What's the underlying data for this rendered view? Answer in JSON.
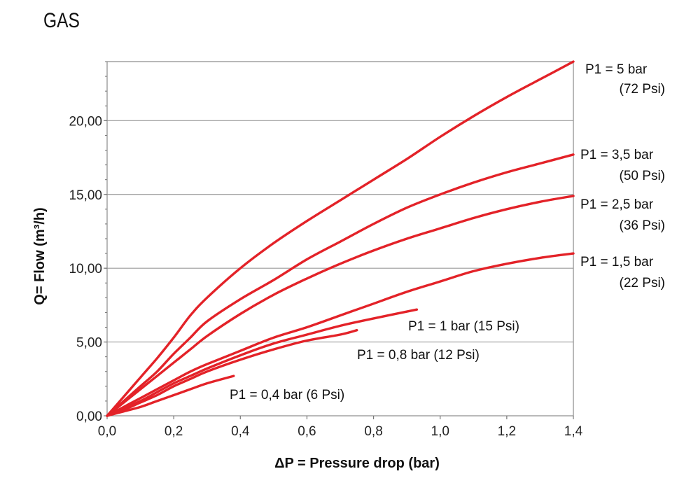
{
  "title": "GAS",
  "chart_data": {
    "type": "line",
    "title": "GAS",
    "xlabel": "ΔP = Pressure drop (bar)",
    "ylabel": "Q= Flow  (m³/h)",
    "xlim": [
      0,
      1.4
    ],
    "ylim": [
      0,
      24
    ],
    "xticks": [
      0,
      0.2,
      0.4,
      0.6,
      0.8,
      1.0,
      1.2,
      1.4
    ],
    "xtick_labels": [
      "0,0",
      "0,2",
      "0,4",
      "0,6",
      "0,8",
      "1,0",
      "1,2",
      "1,4"
    ],
    "yticks": [
      0,
      5,
      10,
      15,
      20
    ],
    "ytick_labels": [
      "0,00",
      "5,00",
      "10,00",
      "15,00",
      "20,00"
    ],
    "grid": "horizontal",
    "line_color": "#e32228",
    "series": [
      {
        "label": [
          "P1 = 5 bar",
          "(72 Psi)"
        ],
        "x": [
          0,
          0.05,
          0.1,
          0.15,
          0.2,
          0.25,
          0.3,
          0.4,
          0.5,
          0.6,
          0.7,
          0.8,
          0.9,
          1.0,
          1.1,
          1.2,
          1.3,
          1.4
        ],
        "y": [
          0,
          1.3,
          2.6,
          3.9,
          5.3,
          6.8,
          8.0,
          10.0,
          11.7,
          13.2,
          14.6,
          16.0,
          17.4,
          18.9,
          20.3,
          21.6,
          22.8,
          24.0
        ]
      },
      {
        "label": [
          "P1 = 3,5 bar",
          "(50 Psi)"
        ],
        "x": [
          0,
          0.05,
          0.1,
          0.15,
          0.2,
          0.25,
          0.3,
          0.4,
          0.5,
          0.6,
          0.7,
          0.8,
          0.9,
          1.0,
          1.1,
          1.2,
          1.3,
          1.4
        ],
        "y": [
          0,
          1.0,
          2.0,
          3.0,
          4.2,
          5.3,
          6.4,
          7.9,
          9.2,
          10.6,
          11.8,
          13.0,
          14.1,
          15.0,
          15.8,
          16.5,
          17.1,
          17.7
        ]
      },
      {
        "label": [
          "P1 = 2,5 bar",
          "(36 Psi)"
        ],
        "x": [
          0,
          0.05,
          0.1,
          0.15,
          0.2,
          0.25,
          0.3,
          0.4,
          0.5,
          0.6,
          0.7,
          0.8,
          0.9,
          1.0,
          1.1,
          1.2,
          1.3,
          1.4
        ],
        "y": [
          0,
          0.9,
          1.8,
          2.7,
          3.6,
          4.5,
          5.4,
          6.9,
          8.2,
          9.3,
          10.3,
          11.2,
          12.0,
          12.7,
          13.4,
          14.0,
          14.5,
          14.9
        ]
      },
      {
        "label": [
          "P1 = 1,5 bar",
          "(22 Psi)"
        ],
        "x": [
          0,
          0.05,
          0.1,
          0.15,
          0.2,
          0.25,
          0.3,
          0.4,
          0.5,
          0.6,
          0.7,
          0.8,
          0.9,
          1.0,
          1.1,
          1.2,
          1.3,
          1.4
        ],
        "y": [
          0,
          0.6,
          1.2,
          1.8,
          2.4,
          3.0,
          3.5,
          4.4,
          5.3,
          6.0,
          6.8,
          7.6,
          8.4,
          9.1,
          9.8,
          10.3,
          10.7,
          11.0
        ]
      },
      {
        "label": [
          "P1 = 1 bar (15 Psi)"
        ],
        "x": [
          0,
          0.05,
          0.1,
          0.15,
          0.2,
          0.25,
          0.3,
          0.4,
          0.5,
          0.6,
          0.7,
          0.8,
          0.93
        ],
        "y": [
          0,
          0.5,
          1.0,
          1.6,
          2.2,
          2.7,
          3.2,
          4.1,
          4.9,
          5.5,
          6.1,
          6.6,
          7.2
        ]
      },
      {
        "label": [
          "P1 = 0,8 bar (12 Psi)"
        ],
        "x": [
          0,
          0.05,
          0.1,
          0.15,
          0.2,
          0.25,
          0.3,
          0.4,
          0.5,
          0.6,
          0.7,
          0.75
        ],
        "y": [
          0,
          0.4,
          0.9,
          1.4,
          2.0,
          2.5,
          3.0,
          3.8,
          4.5,
          5.1,
          5.5,
          5.8
        ]
      },
      {
        "label": [
          "P1 = 0,4 bar (6 Psi)"
        ],
        "x": [
          0,
          0.05,
          0.1,
          0.15,
          0.2,
          0.25,
          0.3,
          0.38
        ],
        "y": [
          0,
          0.3,
          0.6,
          1.0,
          1.4,
          1.8,
          2.2,
          2.7
        ]
      }
    ]
  }
}
